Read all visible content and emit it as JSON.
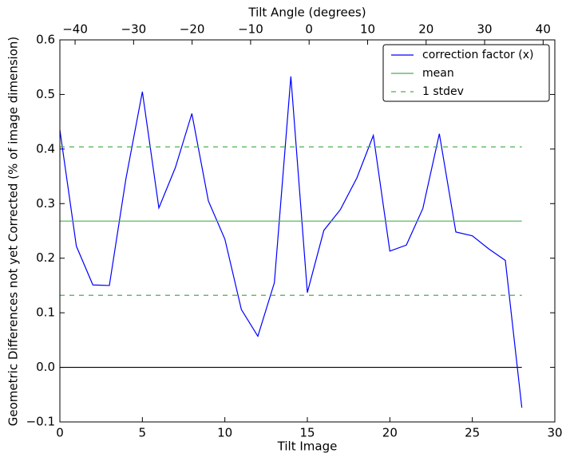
{
  "chart_data": {
    "type": "line",
    "xlabel": "Tilt Image",
    "ylabel": "Geometric Differences not yet Corrected (% of image dimension)",
    "x2label": "Tilt Angle (degrees)",
    "xlim": [
      0,
      30
    ],
    "xticks": [
      0,
      5,
      10,
      15,
      20,
      25,
      30
    ],
    "x2lim": [
      -42.6,
      42.0
    ],
    "x2ticks": [
      {
        "value": -40,
        "label": "−40"
      },
      {
        "value": -30,
        "label": "−30"
      },
      {
        "value": -20,
        "label": "−20"
      },
      {
        "value": -10,
        "label": "−10"
      },
      0,
      10,
      20,
      30,
      40
    ],
    "ylim": [
      -0.1,
      0.6
    ],
    "yticks": [
      {
        "value": -0.1,
        "label": "−0.1"
      },
      {
        "value": 0,
        "label": "0.0"
      },
      0.1,
      0.2,
      0.3,
      0.4,
      0.5,
      0.6
    ],
    "zero_line": {
      "y": 0,
      "x": [
        0,
        28
      ],
      "color": "#000000"
    },
    "legend": "upper right",
    "series": [
      {
        "name": "correction factor (x)",
        "color": "#0000ff",
        "style": "solid",
        "x": [
          0,
          1,
          2,
          3,
          4,
          5,
          6,
          7,
          8,
          9,
          10,
          11,
          12,
          13,
          14,
          15,
          16,
          17,
          18,
          19,
          20,
          21,
          22,
          23,
          24,
          25,
          26,
          27,
          28
        ],
        "values": [
          0.435,
          0.222,
          0.151,
          0.15,
          0.345,
          0.505,
          0.292,
          0.366,
          0.465,
          0.305,
          0.235,
          0.106,
          0.057,
          0.155,
          0.533,
          0.137,
          0.251,
          0.289,
          0.347,
          0.425,
          0.213,
          0.224,
          0.291,
          0.428,
          0.248,
          0.241,
          0.217,
          0.196,
          -0.074
        ]
      },
      {
        "name": "mean",
        "color": "#4caf50",
        "style": "solid",
        "x": [
          0,
          28
        ],
        "values": [
          0.268,
          0.268
        ]
      },
      {
        "name": "1 stdev",
        "color": "#4caf50",
        "style": "dashed",
        "x": [
          0,
          28
        ],
        "values": [
          0.404,
          0.404
        ],
        "values2": [
          0.132,
          0.132
        ]
      }
    ]
  }
}
